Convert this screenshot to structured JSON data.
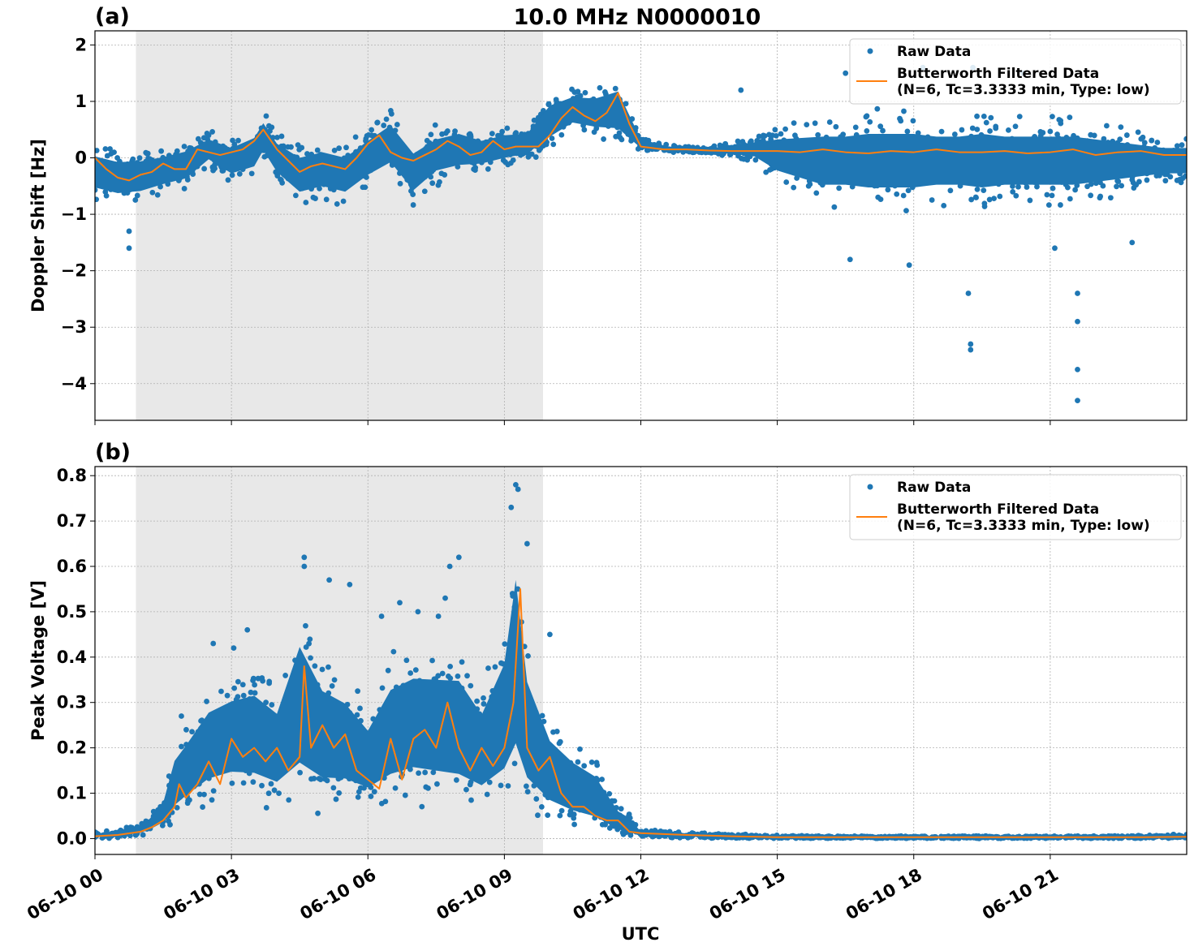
{
  "figure": {
    "title": "10.0 MHz N0000010",
    "xlabel": "UTC"
  },
  "colors": {
    "raw": "#1f77b4",
    "filtered": "#ff7f0e",
    "night_shade": "#e8e8e8",
    "grid": "#b0b0b0"
  },
  "legend": {
    "raw_label": "Raw Data",
    "filtered_label_line1": "Butterworth Filtered Data",
    "filtered_label_line2": "(N=6, Tc=3.3333 min, Type: low)"
  },
  "chart_data": [
    {
      "panel_label": "(a)",
      "type": "scatter",
      "ylabel": "Doppler Shift [Hz]",
      "x_range_hours": [
        0,
        24
      ],
      "ylim": [
        -4.65,
        2.25
      ],
      "yticks": [
        2,
        1,
        0,
        -1,
        -2,
        -3,
        -4
      ],
      "ytick_labels": [
        "2",
        "1",
        "0",
        "−1",
        "−2",
        "−3",
        "−4"
      ],
      "x_ticks_hours": [
        0,
        3,
        6,
        9,
        12,
        15,
        18,
        21
      ],
      "night_shade_hours": [
        0.9,
        9.85
      ],
      "grid": true,
      "legend_position": "top-right",
      "series": [
        {
          "name": "Butterworth Filtered Data",
          "type": "line",
          "x": [
            0,
            0.25,
            0.5,
            0.75,
            1,
            1.25,
            1.5,
            1.75,
            2,
            2.25,
            2.5,
            2.75,
            3,
            3.25,
            3.5,
            3.7,
            4,
            4.25,
            4.5,
            4.75,
            5,
            5.25,
            5.5,
            5.75,
            6,
            6.25,
            6.5,
            6.75,
            7,
            7.25,
            7.5,
            7.75,
            8,
            8.25,
            8.5,
            8.75,
            9,
            9.25,
            9.5,
            9.75,
            10,
            10.25,
            10.5,
            10.75,
            11,
            11.25,
            11.5,
            11.75,
            12,
            12.5,
            13,
            13.5,
            14,
            14.5,
            15,
            15.5,
            16,
            16.5,
            17,
            17.5,
            18,
            18.5,
            19,
            19.5,
            20,
            20.5,
            21,
            21.5,
            22,
            22.5,
            23,
            23.5,
            24
          ],
          "y": [
            0,
            -0.2,
            -0.35,
            -0.4,
            -0.3,
            -0.25,
            -0.1,
            -0.2,
            -0.2,
            0.15,
            0.1,
            0.05,
            0.1,
            0.15,
            0.3,
            0.5,
            0.15,
            -0.05,
            -0.25,
            -0.15,
            -0.1,
            -0.15,
            -0.2,
            0.0,
            0.25,
            0.4,
            0.1,
            0.0,
            -0.05,
            0.05,
            0.15,
            0.3,
            0.2,
            0.05,
            0.1,
            0.3,
            0.15,
            0.2,
            0.2,
            0.2,
            0.4,
            0.7,
            0.9,
            0.75,
            0.65,
            0.8,
            1.15,
            0.6,
            0.2,
            0.15,
            0.15,
            0.13,
            0.12,
            0.12,
            0.12,
            0.1,
            0.15,
            0.1,
            0.08,
            0.12,
            0.1,
            0.15,
            0.1,
            0.1,
            0.12,
            0.08,
            0.1,
            0.15,
            0.05,
            0.1,
            0.12,
            0.05,
            0.05
          ]
        },
        {
          "name": "Raw Data",
          "type": "scatter_band",
          "x": [
            0,
            0.5,
            1,
            1.5,
            2,
            2.5,
            3,
            3.5,
            3.7,
            4,
            4.5,
            5,
            5.5,
            6,
            6.5,
            7,
            7.5,
            8,
            8.5,
            9,
            9.5,
            10,
            10.5,
            11,
            11.5,
            12,
            12.5,
            13,
            13.5,
            14,
            14.5,
            15,
            15.5,
            16,
            16.5,
            17,
            17.5,
            18,
            18.5,
            19,
            19.5,
            20,
            20.5,
            21,
            21.5,
            22,
            22.5,
            23,
            23.5,
            24
          ],
          "y_low": [
            -0.8,
            -0.9,
            -0.85,
            -0.7,
            -0.6,
            -0.2,
            -0.5,
            -0.4,
            -0.1,
            -0.5,
            -0.9,
            -0.8,
            -0.9,
            -0.6,
            -0.4,
            -0.9,
            -0.5,
            -0.4,
            -0.3,
            -0.2,
            -0.1,
            0.1,
            0.4,
            0.3,
            0.2,
            0.1,
            0.1,
            0.08,
            0.06,
            0.0,
            -0.1,
            -0.5,
            -0.7,
            -0.9,
            -0.9,
            -1.0,
            -1.0,
            -1.0,
            -0.9,
            -0.9,
            -1.0,
            -0.9,
            -0.9,
            -0.9,
            -0.9,
            -0.8,
            -0.7,
            -0.6,
            -0.5,
            -0.5
          ],
          "y_high": [
            0.3,
            0.2,
            0.2,
            0.25,
            0.35,
            0.5,
            0.4,
            0.6,
            0.85,
            0.5,
            0.3,
            0.4,
            0.3,
            0.6,
            0.9,
            0.4,
            0.6,
            0.7,
            0.5,
            0.6,
            0.6,
            1.2,
            1.3,
            1.3,
            1.5,
            0.4,
            0.25,
            0.2,
            0.2,
            0.3,
            0.4,
            0.6,
            0.7,
            0.8,
            0.8,
            0.9,
            0.9,
            0.9,
            0.8,
            0.8,
            0.9,
            0.8,
            0.8,
            0.8,
            0.8,
            0.7,
            0.6,
            0.5,
            0.4,
            0.4
          ]
        }
      ],
      "outliers": [
        [
          0.75,
          -1.3
        ],
        [
          0.75,
          -1.6
        ],
        [
          16.5,
          1.5
        ],
        [
          18.2,
          1.6
        ],
        [
          19.3,
          1.6
        ],
        [
          20.4,
          1.5
        ],
        [
          16.6,
          -1.8
        ],
        [
          17.9,
          -1.9
        ],
        [
          19.2,
          -2.4
        ],
        [
          19.25,
          -3.3
        ],
        [
          19.25,
          -3.4
        ],
        [
          21.6,
          -2.4
        ],
        [
          21.6,
          -2.9
        ],
        [
          21.6,
          -3.75
        ],
        [
          21.6,
          -4.3
        ],
        [
          22.8,
          -1.5
        ],
        [
          21.1,
          -1.6
        ],
        [
          14.2,
          1.2
        ]
      ]
    },
    {
      "panel_label": "(b)",
      "type": "scatter",
      "ylabel": "Peak Voltage [V]",
      "x_range_hours": [
        0,
        24
      ],
      "ylim": [
        -0.035,
        0.82
      ],
      "yticks": [
        0.8,
        0.7,
        0.6,
        0.5,
        0.4,
        0.3,
        0.2,
        0.1,
        0.0
      ],
      "ytick_labels": [
        "0.8",
        "0.7",
        "0.6",
        "0.5",
        "0.4",
        "0.3",
        "0.2",
        "0.1",
        "0.0"
      ],
      "x_ticks_hours": [
        0,
        3,
        6,
        9,
        12,
        15,
        18,
        21
      ],
      "x_tick_labels": [
        "06-10 00",
        "06-10 03",
        "06-10 06",
        "06-10 09",
        "06-10 12",
        "06-10 15",
        "06-10 18",
        "06-10 21"
      ],
      "night_shade_hours": [
        0.9,
        9.85
      ],
      "grid": true,
      "legend_position": "top-right",
      "series": [
        {
          "name": "Butterworth Filtered Data",
          "type": "line",
          "x": [
            0,
            0.5,
            1,
            1.25,
            1.5,
            1.75,
            1.85,
            2,
            2.25,
            2.5,
            2.75,
            3,
            3.25,
            3.5,
            3.75,
            4,
            4.25,
            4.5,
            4.6,
            4.75,
            5,
            5.25,
            5.5,
            5.75,
            6,
            6.25,
            6.5,
            6.75,
            7,
            7.25,
            7.5,
            7.75,
            8,
            8.25,
            8.5,
            8.75,
            9,
            9.2,
            9.35,
            9.5,
            9.75,
            10,
            10.25,
            10.5,
            10.75,
            11,
            11.25,
            11.5,
            11.75,
            12,
            12.5,
            13,
            14,
            15,
            16,
            17,
            18,
            19,
            20,
            21,
            22,
            23,
            24
          ],
          "y": [
            0.005,
            0.008,
            0.015,
            0.025,
            0.04,
            0.07,
            0.12,
            0.09,
            0.12,
            0.17,
            0.12,
            0.22,
            0.18,
            0.2,
            0.17,
            0.2,
            0.15,
            0.18,
            0.38,
            0.2,
            0.25,
            0.2,
            0.23,
            0.15,
            0.13,
            0.11,
            0.22,
            0.13,
            0.22,
            0.24,
            0.2,
            0.3,
            0.2,
            0.15,
            0.2,
            0.16,
            0.2,
            0.3,
            0.55,
            0.2,
            0.15,
            0.18,
            0.1,
            0.07,
            0.07,
            0.05,
            0.04,
            0.04,
            0.015,
            0.012,
            0.01,
            0.008,
            0.005,
            0.003,
            0.003,
            0.003,
            0.003,
            0.003,
            0.003,
            0.003,
            0.003,
            0.003,
            0.004
          ]
        },
        {
          "name": "Raw Data",
          "type": "scatter_band",
          "x": [
            0,
            0.5,
            1,
            1.25,
            1.5,
            1.75,
            2,
            2.5,
            3,
            3.5,
            4,
            4.5,
            5,
            5.5,
            6,
            6.5,
            7,
            7.5,
            8,
            8.5,
            9,
            9.25,
            9.5,
            10,
            10.5,
            11,
            11.5,
            11.75,
            12,
            12.5,
            13,
            14,
            15,
            16,
            17,
            18,
            19,
            20,
            21,
            22,
            23,
            24
          ],
          "y_low": [
            0.0,
            0.0,
            0.005,
            0.01,
            0.015,
            0.025,
            0.04,
            0.06,
            0.07,
            0.06,
            0.05,
            0.04,
            0.04,
            0.05,
            0.05,
            0.05,
            0.06,
            0.05,
            0.04,
            0.04,
            0.04,
            0.03,
            0.03,
            0.02,
            0.01,
            0.005,
            0.0,
            0.0,
            0.0,
            0.0,
            0.0,
            0.0,
            0.0,
            0.0,
            0.0,
            0.0,
            0.0,
            0.0,
            0.0,
            0.0,
            0.0,
            0.0
          ],
          "y_high": [
            0.015,
            0.02,
            0.035,
            0.06,
            0.1,
            0.22,
            0.26,
            0.35,
            0.38,
            0.4,
            0.35,
            0.55,
            0.42,
            0.38,
            0.3,
            0.42,
            0.45,
            0.45,
            0.45,
            0.35,
            0.5,
            0.75,
            0.45,
            0.28,
            0.22,
            0.18,
            0.08,
            0.06,
            0.02,
            0.018,
            0.015,
            0.01,
            0.008,
            0.006,
            0.006,
            0.006,
            0.006,
            0.006,
            0.006,
            0.006,
            0.008,
            0.012
          ]
        }
      ],
      "outliers": [
        [
          1.9,
          0.27
        ],
        [
          2.6,
          0.43
        ],
        [
          3.05,
          0.42
        ],
        [
          3.35,
          0.46
        ],
        [
          4.6,
          0.62
        ],
        [
          4.6,
          0.6
        ],
        [
          5.15,
          0.57
        ],
        [
          5.6,
          0.56
        ],
        [
          6.3,
          0.49
        ],
        [
          6.7,
          0.52
        ],
        [
          7.1,
          0.5
        ],
        [
          7.55,
          0.49
        ],
        [
          7.7,
          0.53
        ],
        [
          7.8,
          0.6
        ],
        [
          8.0,
          0.62
        ],
        [
          9.25,
          0.78
        ],
        [
          9.3,
          0.77
        ],
        [
          9.15,
          0.73
        ],
        [
          9.5,
          0.65
        ],
        [
          10.0,
          0.45
        ]
      ]
    }
  ]
}
